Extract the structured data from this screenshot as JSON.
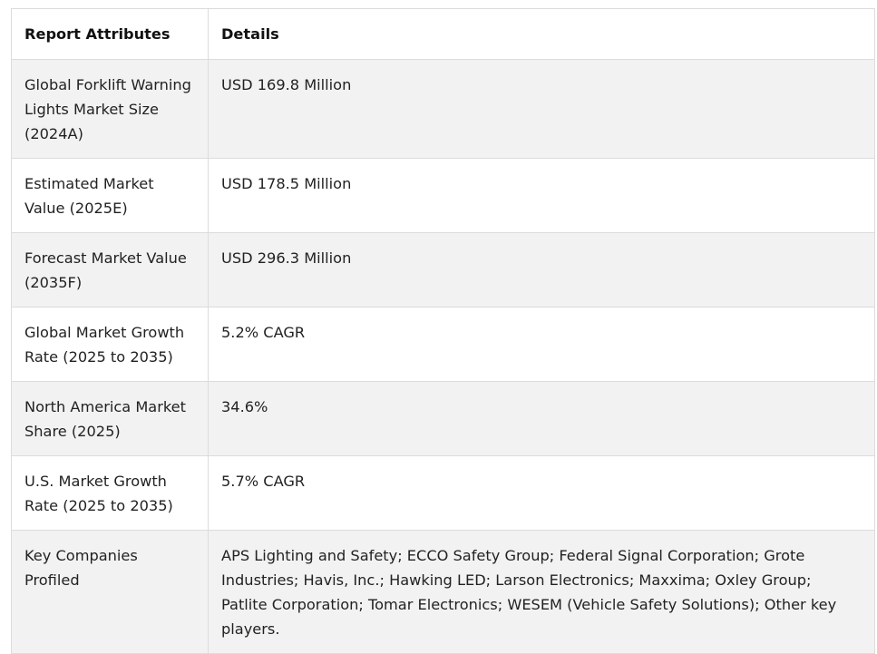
{
  "table": {
    "headers": {
      "attribute": "Report Attributes",
      "details": "Details"
    },
    "rows": [
      {
        "attribute": "Global Forklift Warning Lights Market Size (2024A)",
        "details": "USD 169.8 Million"
      },
      {
        "attribute": "Estimated Market Value (2025E)",
        "details": "USD 178.5 Million"
      },
      {
        "attribute": "Forecast Market Value (2035F)",
        "details": "USD 296.3 Million"
      },
      {
        "attribute": "Global Market Growth Rate (2025 to 2035)",
        "details": "5.2% CAGR"
      },
      {
        "attribute": "North America Market Share (2025)",
        "details": "34.6%"
      },
      {
        "attribute": "U.S. Market Growth Rate (2025 to 2035)",
        "details": "5.7% CAGR"
      },
      {
        "attribute": "Key Companies Profiled",
        "details": "APS Lighting and Safety; ECCO Safety Group; Federal Signal Corporation; Grote Industries; Havis, Inc.; Hawking LED; Larson Electronics; Maxxima; Oxley Group; Patlite Corporation; Tomar Electronics; WESEM (Vehicle Safety Solutions); Other key players."
      }
    ]
  }
}
